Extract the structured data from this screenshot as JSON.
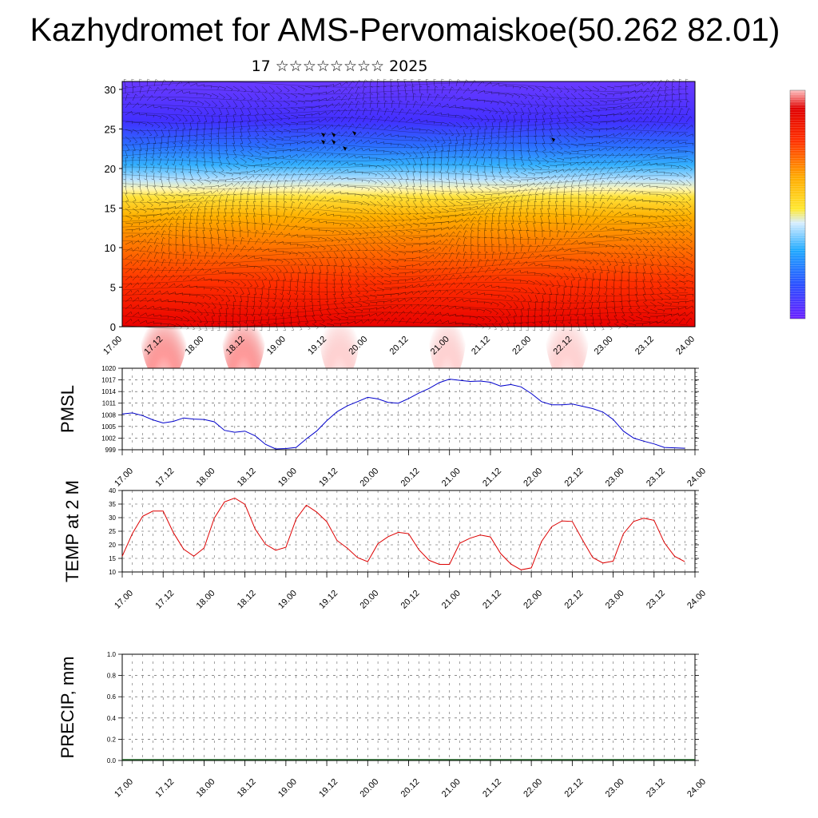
{
  "title": "Kazhydromet for AMS-Pervomaiskoe(50.262 82.01)",
  "subtitle": "17 ☆☆☆☆☆☆☆☆ 2025",
  "chart_data": [
    {
      "type": "heatmap",
      "title": "",
      "ylim": [
        0,
        31
      ],
      "y_ticks": [
        "0",
        "5",
        "10",
        "15",
        "20",
        "25",
        "30"
      ],
      "x_ticks": [
        "17.00",
        "17.12",
        "18.00",
        "18.12",
        "19.00",
        "19.12",
        "20.00",
        "20.12",
        "21.00",
        "21.12",
        "22.00",
        "22.12",
        "23.00",
        "23.12",
        "24.00"
      ],
      "overlay": "wind barbs",
      "colormap": [
        "#5a1aff",
        "#2a66ff",
        "#1fb0ff",
        "#bfe6ff",
        "#ffe83a",
        "#ffaa00",
        "#ff5500",
        "#e60000",
        "#ffc8c8"
      ],
      "colorbar": {
        "tick_labels": []
      }
    },
    {
      "type": "line",
      "ylabel": "PMSL",
      "ylim": [
        999,
        1020
      ],
      "y_ticks": [
        "999",
        "1002",
        "1005",
        "1008",
        "1011",
        "1014",
        "1017",
        "1020"
      ],
      "x_ticks": [
        "17.00",
        "17.12",
        "18.00",
        "18.12",
        "19.00",
        "19.12",
        "20.00",
        "20.12",
        "21.00",
        "21.12",
        "22.00",
        "22.12",
        "23.00",
        "23.12",
        "24.00"
      ],
      "color": "#0000cc",
      "x": [
        0,
        3,
        6,
        9,
        12,
        15,
        18,
        21,
        24,
        27,
        30,
        33,
        36,
        39,
        42,
        45,
        48,
        51,
        54,
        57,
        60,
        63,
        66,
        69,
        72,
        75,
        78,
        81,
        84,
        87,
        90,
        93,
        96,
        99,
        102,
        105,
        108,
        111,
        114,
        117,
        120,
        123,
        126,
        129,
        132,
        135,
        138,
        141,
        144,
        147,
        150,
        153,
        156,
        159,
        162,
        165
      ],
      "values": [
        1008.2,
        1008.5,
        1007.8,
        1006.7,
        1005.9,
        1006.3,
        1007.2,
        1006.9,
        1006.8,
        1006.2,
        1004.0,
        1003.5,
        1003.8,
        1002.6,
        1000.4,
        999.2,
        999.3,
        999.6,
        1001.8,
        1003.8,
        1006.5,
        1008.8,
        1010.3,
        1011.4,
        1012.5,
        1012.1,
        1011.2,
        1011.0,
        1012.2,
        1013.6,
        1014.8,
        1016.3,
        1017.2,
        1016.9,
        1016.6,
        1016.7,
        1016.4,
        1015.4,
        1015.8,
        1015.2,
        1013.5,
        1011.4,
        1010.6,
        1010.6,
        1010.8,
        1010.2,
        1009.6,
        1008.7,
        1006.8,
        1003.8,
        1002.0,
        1001.2,
        1000.5,
        999.6,
        999.5,
        999.4
      ]
    },
    {
      "type": "line",
      "ylabel": "TEMP at 2 M",
      "ylim": [
        10,
        40
      ],
      "y_ticks": [
        "10",
        "15",
        "20",
        "25",
        "30",
        "35",
        "40"
      ],
      "x_ticks": [
        "17.00",
        "17.12",
        "18.00",
        "18.12",
        "19.00",
        "19.12",
        "20.00",
        "20.12",
        "21.00",
        "21.12",
        "22.00",
        "22.12",
        "23.00",
        "23.12",
        "24.00"
      ],
      "color": "#dd0000",
      "x": [
        0,
        3,
        6,
        9,
        12,
        15,
        18,
        21,
        24,
        27,
        30,
        33,
        36,
        39,
        42,
        45,
        48,
        51,
        54,
        57,
        60,
        63,
        66,
        69,
        72,
        75,
        78,
        81,
        84,
        87,
        90,
        93,
        96,
        99,
        102,
        105,
        108,
        111,
        114,
        117,
        120,
        123,
        126,
        129,
        132,
        135,
        138,
        141,
        144,
        147,
        150,
        153,
        156,
        159,
        162,
        165
      ],
      "values": [
        15.8,
        24.2,
        30.5,
        32.4,
        32.4,
        24.5,
        18.4,
        15.8,
        18.8,
        29.8,
        35.8,
        37.2,
        34.9,
        25.8,
        20.2,
        18.0,
        19.1,
        29.5,
        34.6,
        32.1,
        28.5,
        21.6,
        18.8,
        15.3,
        13.8,
        20.4,
        23.0,
        24.6,
        24.1,
        18.2,
        14.3,
        12.8,
        12.8,
        20.6,
        22.4,
        23.6,
        22.9,
        16.8,
        12.9,
        10.8,
        11.5,
        21.2,
        26.7,
        28.8,
        28.6,
        21.8,
        15.3,
        13.3,
        14.0,
        24.1,
        28.6,
        29.8,
        29.0,
        20.8,
        15.8,
        13.8
      ]
    },
    {
      "type": "bar",
      "ylabel": "PRECIP, mm",
      "ylim": [
        0.0,
        1.0
      ],
      "y_ticks": [
        "0.0",
        "0.2",
        "0.4",
        "0.6",
        "0.8",
        "1.0"
      ],
      "x_ticks": [
        "17.00",
        "17.12",
        "18.00",
        "18.12",
        "19.00",
        "19.12",
        "20.00",
        "20.12",
        "21.00",
        "21.12",
        "22.00",
        "22.12",
        "23.00",
        "23.12",
        "24.00"
      ],
      "values": [
        0.0
      ]
    }
  ]
}
